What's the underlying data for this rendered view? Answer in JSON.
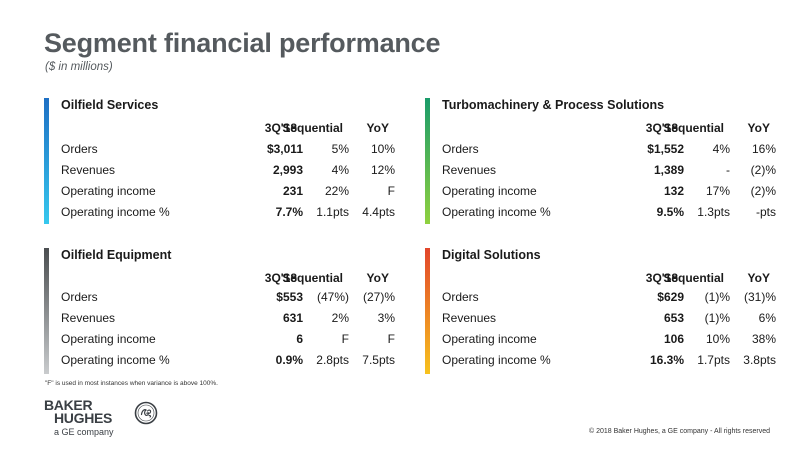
{
  "header": {
    "title": "Segment financial performance",
    "subtitle": "($ in millions)"
  },
  "columns": [
    "3Q'18",
    "Sequential",
    "YoY"
  ],
  "segments": [
    {
      "name": "Oilfield Services",
      "gradient": [
        "#1e6fc4",
        "#36c8ee"
      ],
      "rows": [
        {
          "label": "Orders",
          "q": "$3,011",
          "seq": "5%",
          "yoy": "10%"
        },
        {
          "label": "Revenues",
          "q": "2,993",
          "seq": "4%",
          "yoy": "12%"
        },
        {
          "label": "Operating income",
          "q": "231",
          "seq": "22%",
          "yoy": "F"
        },
        {
          "label": "Operating income %",
          "q": "7.7%",
          "seq": "1.1pts",
          "yoy": "4.4pts"
        }
      ]
    },
    {
      "name": "Turbomachinery & Process Solutions",
      "gradient": [
        "#1a9b6a",
        "#8fd13f"
      ],
      "rows": [
        {
          "label": "Orders",
          "q": "$1,552",
          "seq": "4%",
          "yoy": "16%"
        },
        {
          "label": "Revenues",
          "q": "1,389",
          "seq": "-",
          "yoy": "(2)%"
        },
        {
          "label": "Operating income",
          "q": "132",
          "seq": "17%",
          "yoy": "(2)%"
        },
        {
          "label": "Operating income %",
          "q": "9.5%",
          "seq": "1.3pts",
          "yoy": "-pts"
        }
      ]
    },
    {
      "name": "Oilfield Equipment",
      "gradient": [
        "#4a4d50",
        "#c9cbcd"
      ],
      "rows": [
        {
          "label": "Orders",
          "q": "$553",
          "seq": "(47%)",
          "yoy": "(27)%"
        },
        {
          "label": "Revenues",
          "q": "631",
          "seq": "2%",
          "yoy": "3%"
        },
        {
          "label": "Operating income",
          "q": "6",
          "seq": "F",
          "yoy": "F"
        },
        {
          "label": "Operating income %",
          "q": "0.9%",
          "seq": "2.8pts",
          "yoy": "7.5pts"
        }
      ]
    },
    {
      "name": "Digital Solutions",
      "gradient": [
        "#e2452b",
        "#f7c21e"
      ],
      "rows": [
        {
          "label": "Orders",
          "q": "$629",
          "seq": "(1)%",
          "yoy": "(31)%"
        },
        {
          "label": "Revenues",
          "q": "653",
          "seq": "(1)%",
          "yoy": "6%"
        },
        {
          "label": "Operating income",
          "q": "106",
          "seq": "10%",
          "yoy": "38%"
        },
        {
          "label": "Operating income %",
          "q": "16.3%",
          "seq": "1.7pts",
          "yoy": "3.8pts"
        }
      ]
    }
  ],
  "footnote": "\"F\" is used in most instances when variance is above 100%.",
  "logo": {
    "line1": "BAKER",
    "line2": "HUGHES",
    "sub": "a GE company",
    "icon": "ge-monogram-icon"
  },
  "copyright": "© 2018 Baker Hughes, a GE company - All rights reserved"
}
